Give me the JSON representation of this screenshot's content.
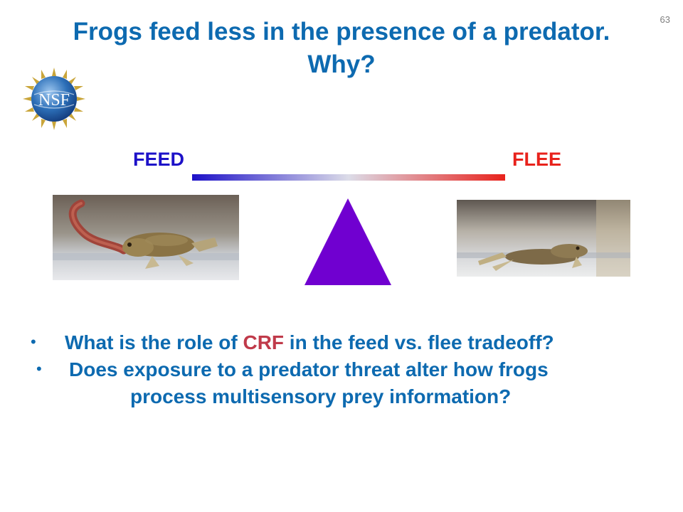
{
  "slide": {
    "number": "63"
  },
  "title": {
    "line1": "Frogs feed less in the presence of a predator.",
    "line2": "Why?"
  },
  "logo": {
    "text": "NSF",
    "colors": {
      "globe": "#2c6fb8",
      "stars": "#c9a53a"
    }
  },
  "balance": {
    "left_label": "FEED",
    "right_label": "FLEE",
    "colors": {
      "feed": "#1d11c8",
      "flee": "#e8221c",
      "fulcrum": "#7000d0"
    }
  },
  "bullets": {
    "dot": "•",
    "item1": {
      "before": "What is the role of ",
      "highlight": "CRF",
      "after": " in the feed vs. flee tradeoff?"
    },
    "item2": {
      "line1": "Does exposure to a predator threat alter how frogs",
      "line2": "process multisensory prey information?"
    }
  }
}
